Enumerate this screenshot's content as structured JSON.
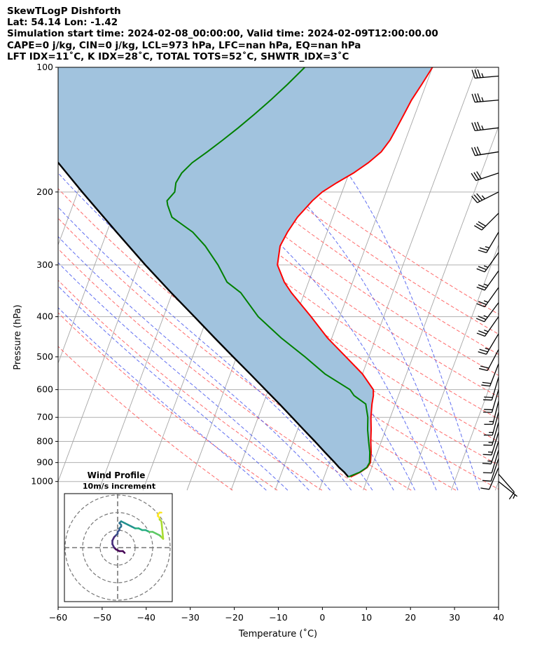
{
  "header": {
    "line1": "SkewTLogP Dishforth",
    "line2": "Lat: 54.14   Lon: -1.42",
    "line3": "Simulation start time: 2024-02-08_00:00:00, Valid time: 2024-02-09T12:00:00.00",
    "line4": "CAPE=0 j/kg, CIN=0 j/kg, LCL=973 hPa, LFC=nan hPa, EQ=nan hPa",
    "line5": "LFT IDX=11˚C, K IDX=28˚C, TOTAL TOTS=52˚C, SHWTR_IDX=3˚C"
  },
  "chart_data": [
    {
      "type": "line",
      "chart": "skew-t log-p",
      "xlabel": "Temperature (˚C)",
      "ylabel": "Pressure (hPa)",
      "xlim": [
        -60,
        40
      ],
      "ylim": [
        1050,
        100
      ],
      "y_scale": "log",
      "skew_deg_per_decade": 35,
      "x_ticks": [
        -60,
        -50,
        -40,
        -30,
        -20,
        -10,
        0,
        10,
        20,
        30,
        40
      ],
      "y_ticks": [
        100,
        200,
        300,
        400,
        500,
        600,
        700,
        800,
        900,
        1000
      ],
      "grid": true,
      "isotherms_deg": [
        -180,
        -170,
        -160,
        -150,
        -140,
        -130,
        -120,
        -110,
        -100,
        -90,
        -80,
        -70,
        -60,
        -50,
        -40,
        -30,
        -20,
        -10,
        0,
        10,
        20,
        30,
        40
      ],
      "dry_adiabats_K": [
        250,
        260,
        270,
        280,
        290,
        300,
        310,
        320,
        330,
        340,
        350,
        360,
        370,
        380,
        390
      ],
      "moist_adiabats_C": [
        -15,
        -10,
        -5,
        0,
        5,
        10,
        15,
        20,
        25,
        30,
        35
      ],
      "series": [
        {
          "role": "temperature",
          "color": "#ff0000",
          "p": [
            975,
            950,
            925,
            900,
            850,
            800,
            750,
            700,
            650,
            620,
            600,
            550,
            500,
            450,
            400,
            350,
            330,
            300,
            270,
            250,
            230,
            210,
            200,
            190,
            180,
            170,
            160,
            150,
            140,
            130,
            120,
            110,
            100
          ],
          "values": [
            6.0,
            7.8,
            9.0,
            9.3,
            8.6,
            7.6,
            6.7,
            5.6,
            4.7,
            4.3,
            3.8,
            0.0,
            -5.2,
            -11.0,
            -16.5,
            -23.0,
            -25.5,
            -28.5,
            -29.5,
            -29.0,
            -28.0,
            -26.0,
            -24.5,
            -22.0,
            -19.0,
            -16.5,
            -14.5,
            -13.5,
            -13.0,
            -12.5,
            -12.0,
            -11.0,
            -10.0
          ]
        },
        {
          "role": "dewpoint",
          "color": "#008000",
          "p": [
            975,
            950,
            925,
            900,
            850,
            800,
            750,
            700,
            650,
            620,
            600,
            550,
            500,
            450,
            400,
            350,
            330,
            300,
            270,
            250,
            230,
            215,
            210,
            200,
            190,
            180,
            170,
            160,
            150,
            140,
            130,
            120,
            110,
            100
          ],
          "values": [
            5.5,
            7.7,
            8.9,
            9.1,
            8.3,
            7.1,
            5.9,
            4.9,
            3.3,
            -0.1,
            -1.5,
            -8.5,
            -14.5,
            -21.5,
            -28.5,
            -34.5,
            -38.5,
            -42.0,
            -46.5,
            -50.5,
            -56.5,
            -58.5,
            -59.0,
            -58.0,
            -58.5,
            -58.0,
            -56.5,
            -54.0,
            -51.5,
            -49.0,
            -46.5,
            -44.0,
            -41.5,
            -39.0
          ]
        },
        {
          "role": "parcel",
          "color": "#000000",
          "p": [
            975,
            950,
            925,
            900,
            850,
            800,
            750,
            700,
            650,
            600,
            550,
            500,
            450,
            400,
            350,
            300,
            250,
            200,
            150,
            100
          ],
          "values": [
            5.5,
            4.2,
            2.6,
            1.2,
            -1.9,
            -5.1,
            -8.6,
            -12.3,
            -16.3,
            -20.7,
            -25.5,
            -30.8,
            -36.6,
            -43.0,
            -50.3,
            -58.5,
            -67.8,
            -79.0,
            -93.0,
            -110.0
          ]
        }
      ],
      "cape_shading_color": "#a1c3de",
      "wind_barbs": {
        "color": "#000000",
        "p": [
          1000,
          960,
          925,
          880,
          840,
          800,
          760,
          720,
          680,
          640,
          600,
          560,
          520,
          480,
          440,
          400,
          370,
          340,
          310,
          280,
          250,
          225,
          200,
          180,
          160,
          140,
          120,
          105
        ],
        "u": [
          -5,
          -7,
          3,
          3,
          3,
          4,
          4,
          4,
          4,
          4,
          5,
          5,
          7,
          10,
          12,
          14,
          15,
          15,
          15,
          15,
          13,
          20,
          30,
          30,
          32,
          33,
          35,
          35
        ],
        "v": [
          4,
          8,
          7,
          9,
          10,
          12,
          13,
          14,
          15,
          16,
          17,
          17,
          18,
          19,
          20,
          20,
          20,
          21,
          21,
          21,
          22,
          20,
          15,
          10,
          5,
          4,
          3,
          3
        ]
      }
    },
    {
      "type": "line",
      "chart": "hodograph",
      "title": "Wind Profile",
      "subtitle": "10m/s increment",
      "rings_ms": [
        10,
        20,
        30
      ],
      "colormap": "viridis",
      "u": [
        4,
        3,
        1,
        -1,
        -2,
        -3,
        -3,
        -2,
        -1,
        0,
        0,
        1,
        1,
        2,
        2,
        1,
        2,
        4,
        6,
        8,
        10,
        12,
        14,
        16,
        18,
        20,
        22,
        24,
        25,
        26,
        25,
        24,
        24,
        23,
        23,
        24,
        25
      ],
      "v": [
        -3,
        -2,
        -2,
        -1,
        0,
        2,
        4,
        6,
        7,
        8,
        9,
        10,
        11,
        12,
        13,
        14,
        15,
        14,
        13,
        12,
        11,
        11,
        10,
        10,
        9,
        9,
        8,
        7,
        6,
        5,
        15,
        16,
        17,
        18,
        19,
        20,
        20
      ]
    }
  ]
}
